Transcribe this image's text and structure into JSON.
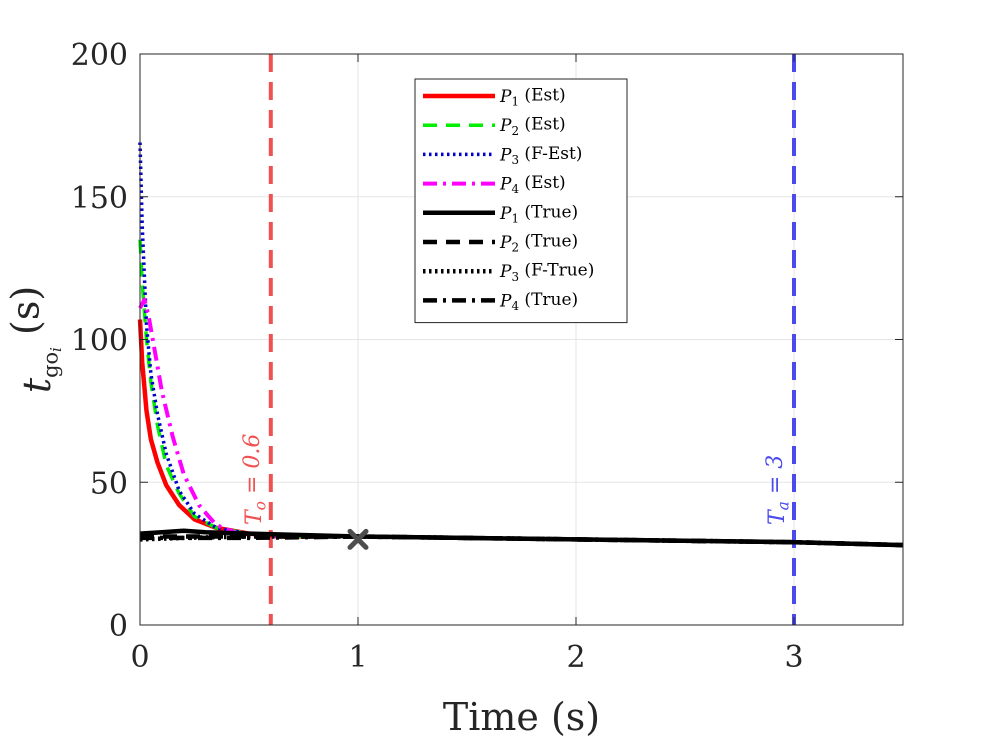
{
  "chart_data": {
    "type": "line",
    "xlabel": "Time (s)",
    "ylabel": {
      "base": "t",
      "sub": "go",
      "subsub": "i",
      "unit": "(s)"
    },
    "xlim": [
      0,
      3.5
    ],
    "ylim": [
      0,
      200
    ],
    "xticks": [
      0,
      1,
      2,
      3
    ],
    "yticks": [
      0,
      50,
      100,
      150,
      200
    ],
    "grid": true,
    "legend_position": "top-center",
    "series": [
      {
        "name": "P1 (Est)",
        "label_sym": "P",
        "label_sub": "1",
        "label_rest": " (Est)",
        "color": "#ff0000",
        "dash": "solid",
        "width": 4.5,
        "x": [
          0,
          0.01,
          0.03,
          0.05,
          0.08,
          0.12,
          0.18,
          0.25,
          0.35,
          0.5,
          0.65,
          0.8
        ],
        "y": [
          107,
          92,
          75,
          65,
          57,
          49,
          42,
          37,
          34,
          32,
          31,
          31
        ]
      },
      {
        "name": "P2 (Est)",
        "label_sym": "P",
        "label_sub": "2",
        "label_rest": " (Est)",
        "color": "#00ee00",
        "dash": "dashed",
        "width": 3.5,
        "x": [
          0,
          0.01,
          0.03,
          0.05,
          0.08,
          0.12,
          0.18,
          0.25,
          0.35,
          0.5,
          0.65,
          0.8
        ],
        "y": [
          135,
          120,
          100,
          85,
          70,
          56,
          46,
          38,
          34,
          32,
          31,
          31
        ]
      },
      {
        "name": "P3 (F-Est)",
        "label_sym": "P",
        "label_sub": "3",
        "label_rest": " (F-Est)",
        "color": "#0000cc",
        "dash": "dotted",
        "width": 3.5,
        "x": [
          0,
          0.01,
          0.03,
          0.05,
          0.08,
          0.12,
          0.18,
          0.25,
          0.35,
          0.5,
          0.65,
          0.8
        ],
        "y": [
          169,
          140,
          105,
          88,
          74,
          60,
          47,
          39,
          34,
          32,
          31,
          31
        ]
      },
      {
        "name": "P4 (Est)",
        "label_sym": "P",
        "label_sub": "4",
        "label_rest": " (Est)",
        "color": "#ff00ff",
        "dash": "dashdot",
        "width": 4,
        "x": [
          0,
          0.02,
          0.04,
          0.07,
          0.1,
          0.15,
          0.2,
          0.27,
          0.35,
          0.45,
          0.6,
          0.8
        ],
        "y": [
          111,
          114,
          108,
          95,
          82,
          66,
          53,
          42,
          35,
          32,
          31,
          31
        ]
      },
      {
        "name": "P1 (True)",
        "label_sym": "P",
        "label_sub": "1",
        "label_rest": " (True)",
        "color": "#000000",
        "dash": "solid",
        "width": 4.5,
        "x": [
          0,
          0.1,
          0.2,
          0.3,
          0.5,
          1,
          2,
          3,
          3.5
        ],
        "y": [
          32,
          32.5,
          33,
          32.5,
          32,
          31,
          30,
          29,
          28
        ]
      },
      {
        "name": "P2 (True)",
        "label_sym": "P",
        "label_sub": "2",
        "label_rest": " (True)",
        "color": "#000000",
        "dash": "dashed",
        "width": 4.5,
        "x": [
          0,
          0.2,
          0.5,
          1,
          2,
          3,
          3.5
        ],
        "y": [
          31,
          31,
          31,
          31,
          30,
          29,
          28
        ]
      },
      {
        "name": "P3 (F-True)",
        "label_sym": "P",
        "label_sub": "3",
        "label_rest": " (F-True)",
        "color": "#000000",
        "dash": "dotted",
        "width": 4.5,
        "x": [
          0,
          0.2,
          0.5,
          1,
          2,
          3,
          3.5
        ],
        "y": [
          30,
          30.5,
          31,
          31,
          30,
          29,
          28
        ]
      },
      {
        "name": "P4 (True)",
        "label_sym": "P",
        "label_sub": "4",
        "label_rest": " (True)",
        "color": "#000000",
        "dash": "dashdot",
        "width": 4.5,
        "x": [
          0,
          0.2,
          0.5,
          1,
          2,
          3,
          3.5
        ],
        "y": [
          30.5,
          30.5,
          30.5,
          31,
          30,
          29,
          28
        ]
      }
    ],
    "vertical_lines": [
      {
        "x": 0.6,
        "color": "#f05050",
        "label_sym": "T",
        "label_sub": "o",
        "label_rest": " = 0.6"
      },
      {
        "x": 3,
        "color": "#4a4aee",
        "label_sym": "T",
        "label_sub": "a",
        "label_rest": " = 3"
      }
    ],
    "marker": {
      "x": 1,
      "y": 30,
      "symbol": "x",
      "color": "#4d4d4d"
    }
  }
}
